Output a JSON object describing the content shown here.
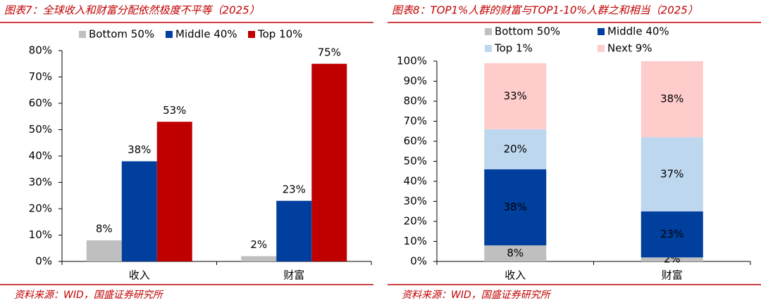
{
  "chart_data": [
    {
      "type": "bar",
      "title": "图表7：全球收入和财富分配依然极度不平等（2025）",
      "source": "资料来源：WID，国盛证券研究所",
      "categories": [
        "收入",
        "财富"
      ],
      "series": [
        {
          "name": "Bottom 50%",
          "color": "#bfbfbf",
          "values": [
            8,
            2
          ],
          "value_labels": [
            "8%",
            "2%"
          ]
        },
        {
          "name": "Middle 40%",
          "color": "#003f9e",
          "values": [
            38,
            23
          ],
          "value_labels": [
            "38%",
            "23%"
          ]
        },
        {
          "name": "Top 10%",
          "color": "#c00000",
          "values": [
            53,
            75
          ],
          "value_labels": [
            "53%",
            "75%"
          ]
        }
      ],
      "ylim": [
        0,
        80
      ],
      "yticks": [
        {
          "value": 0,
          "label": "0%"
        },
        {
          "value": 10,
          "label": "10%"
        },
        {
          "value": 20,
          "label": "20%"
        },
        {
          "value": 30,
          "label": "30%"
        },
        {
          "value": 40,
          "label": "40%"
        },
        {
          "value": 50,
          "label": "50%"
        },
        {
          "value": 60,
          "label": "60%"
        },
        {
          "value": 70,
          "label": "70%"
        },
        {
          "value": 80,
          "label": "80%"
        }
      ],
      "stacked": false
    },
    {
      "type": "bar",
      "title": "图表8：TOP1%人群的财富与TOP1-10%人群之和相当（2025）",
      "source": "资料来源：WID，国盛证券研究所",
      "categories": [
        "收入",
        "财富"
      ],
      "series": [
        {
          "name": "Bottom 50%",
          "color": "#bfbfbf",
          "values": [
            8,
            2
          ],
          "value_labels": [
            "8%",
            "2%"
          ]
        },
        {
          "name": "Middle 40%",
          "color": "#003f9e",
          "values": [
            38,
            23
          ],
          "value_labels": [
            "38%",
            "23%"
          ]
        },
        {
          "name": "Top 1%",
          "color": "#bdd7ee",
          "values": [
            20,
            37
          ],
          "value_labels": [
            "20%",
            "37%"
          ]
        },
        {
          "name": "Next 9%",
          "color": "#ffcccc",
          "values": [
            33,
            38
          ],
          "value_labels": [
            "33%",
            "38%"
          ]
        }
      ],
      "ylim": [
        0,
        100
      ],
      "yticks": [
        {
          "value": 0,
          "label": "0%"
        },
        {
          "value": 10,
          "label": "10%"
        },
        {
          "value": 20,
          "label": "20%"
        },
        {
          "value": 30,
          "label": "30%"
        },
        {
          "value": 40,
          "label": "40%"
        },
        {
          "value": 50,
          "label": "50%"
        },
        {
          "value": 60,
          "label": "60%"
        },
        {
          "value": 70,
          "label": "70%"
        },
        {
          "value": 80,
          "label": "80%"
        },
        {
          "value": 90,
          "label": "90%"
        },
        {
          "value": 100,
          "label": "100%"
        }
      ],
      "stacked": true
    }
  ]
}
